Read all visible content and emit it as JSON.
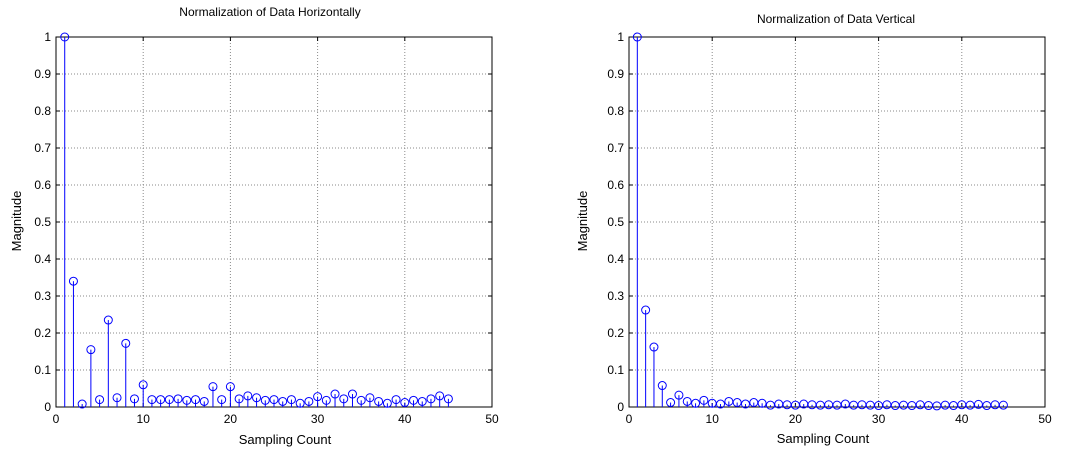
{
  "chart_data": [
    {
      "type": "stem",
      "title": "Normalization of Data Horizontally",
      "xlabel": "Sampling Count",
      "ylabel": "Magnitude",
      "xlim": [
        0,
        50
      ],
      "ylim": [
        0,
        1
      ],
      "xticks": [
        "0",
        "10",
        "20",
        "30",
        "40",
        "50"
      ],
      "yticks": [
        "0",
        "0.1",
        "0.2",
        "0.3",
        "0.4",
        "0.5",
        "0.6",
        "0.7",
        "0.8",
        "0.9",
        "1"
      ],
      "grid": true,
      "color": "#0000ff",
      "x": [
        1,
        2,
        3,
        4,
        5,
        6,
        7,
        8,
        9,
        10,
        11,
        12,
        13,
        14,
        15,
        16,
        17,
        18,
        19,
        20,
        21,
        22,
        23,
        24,
        25,
        26,
        27,
        28,
        29,
        30,
        31,
        32,
        33,
        34,
        35,
        36,
        37,
        38,
        39,
        40,
        41,
        42,
        43,
        44,
        45
      ],
      "y": [
        1.0,
        0.34,
        0.008,
        0.155,
        0.02,
        0.235,
        0.025,
        0.172,
        0.022,
        0.06,
        0.02,
        0.02,
        0.02,
        0.022,
        0.018,
        0.02,
        0.015,
        0.055,
        0.02,
        0.055,
        0.022,
        0.03,
        0.025,
        0.018,
        0.02,
        0.015,
        0.02,
        0.01,
        0.015,
        0.028,
        0.018,
        0.035,
        0.022,
        0.035,
        0.018,
        0.025,
        0.015,
        0.01,
        0.02,
        0.012,
        0.018,
        0.015,
        0.022,
        0.03,
        0.022
      ]
    },
    {
      "type": "stem",
      "title": "Normalization of Data Vertical",
      "xlabel": "Sampling Count",
      "ylabel": "Magnitude",
      "xlim": [
        0,
        50
      ],
      "ylim": [
        0,
        1
      ],
      "xticks": [
        "0",
        "10",
        "20",
        "30",
        "40",
        "50"
      ],
      "yticks": [
        "0",
        "0.1",
        "0.2",
        "0.3",
        "0.4",
        "0.5",
        "0.6",
        "0.7",
        "0.8",
        "0.9",
        "1"
      ],
      "grid": true,
      "color": "#0000ff",
      "x": [
        1,
        2,
        3,
        4,
        5,
        6,
        7,
        8,
        9,
        10,
        11,
        12,
        13,
        14,
        15,
        16,
        17,
        18,
        19,
        20,
        21,
        22,
        23,
        24,
        25,
        26,
        27,
        28,
        29,
        30,
        31,
        32,
        33,
        34,
        35,
        36,
        37,
        38,
        39,
        40,
        41,
        42,
        43,
        44,
        45
      ],
      "y": [
        1.0,
        0.262,
        0.162,
        0.058,
        0.012,
        0.032,
        0.015,
        0.01,
        0.018,
        0.01,
        0.008,
        0.015,
        0.012,
        0.008,
        0.012,
        0.01,
        0.005,
        0.008,
        0.006,
        0.005,
        0.008,
        0.006,
        0.005,
        0.006,
        0.005,
        0.008,
        0.005,
        0.006,
        0.005,
        0.004,
        0.006,
        0.004,
        0.005,
        0.004,
        0.006,
        0.004,
        0.003,
        0.005,
        0.004,
        0.006,
        0.005,
        0.007,
        0.004,
        0.006,
        0.005
      ]
    }
  ]
}
